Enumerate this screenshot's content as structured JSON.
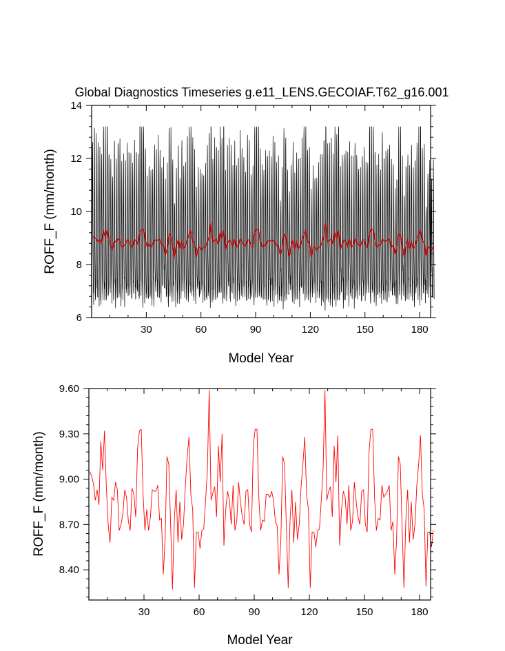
{
  "chart_data": [
    {
      "type": "line",
      "title": "Global Diagnostics Timeseries g.e11_LENS.GECOIAF.T62_g16.001",
      "xlabel": "Model Year",
      "ylabel": "ROFF_F (mm/month)",
      "xlim": [
        0,
        186
      ],
      "ylim": [
        6,
        14
      ],
      "xticks": [
        30,
        60,
        90,
        120,
        150,
        180
      ],
      "yticks": [
        6,
        8,
        10,
        12,
        14
      ],
      "grid": false,
      "series": [
        {
          "role": "monthly",
          "color": "#000000",
          "monthly_cycle": [
            7.0,
            6.8,
            7.1,
            8.2,
            10.0,
            11.8,
            12.3,
            11.0,
            9.3,
            8.3,
            7.6,
            7.1
          ],
          "values": "monthly values oscillating seasonally between approx 6.2 and 13.2 mm/month over model years 0-186"
        },
        {
          "role": "annual_mean",
          "color": "#cc0000",
          "values": [
            9.05,
            9.02,
            8.97,
            8.86,
            8.93,
            8.83,
            9.25,
            9.06,
            9.32,
            8.95,
            8.7,
            8.58,
            8.88,
            8.86,
            8.98,
            8.93,
            8.66,
            8.7,
            8.77,
            8.93,
            8.88,
            8.72,
            8.66,
            8.94,
            8.9,
            8.75,
            9.2,
            9.32,
            9.33,
            8.9,
            8.66,
            8.8,
            8.66,
            8.75,
            8.93,
            8.92,
            8.92,
            8.96,
            8.73,
            8.74,
            8.37,
            8.6,
            9.15,
            9.1,
            8.7,
            8.27,
            8.73,
            8.93,
            8.58,
            8.85,
            8.6,
            8.7,
            8.95,
            9.15,
            9.28,
            8.9,
            8.8,
            8.28,
            8.65,
            8.65,
            8.54,
            8.66,
            8.67,
            8.85,
            9.06,
            9.59,
            8.86,
            8.91,
            8.95,
            8.75,
            9.22,
            8.98,
            9.3,
            8.56,
            8.8,
            8.92,
            8.86,
            8.7,
            8.96,
            8.66,
            8.72,
            8.98,
            8.85,
            8.75,
            8.7,
            8.92,
            8.93,
            8.7,
            8.65,
            9.22,
            9.33,
            9.33,
            8.88,
            8.66,
            8.73,
            8.72,
            8.9,
            8.9,
            8.88,
            8.92,
            8.86,
            8.72,
            8.69,
            8.37,
            8.6,
            9.15,
            9.1,
            8.68,
            8.28,
            8.73,
            8.93,
            8.58,
            8.85,
            8.6,
            8.7,
            8.95,
            9.1,
            9.28,
            8.9,
            8.8,
            8.28,
            8.65,
            8.65,
            8.55,
            8.66,
            8.67,
            8.86,
            9.07,
            9.59,
            8.86,
            8.92,
            8.95,
            8.75,
            9.22,
            8.98,
            9.29,
            8.56,
            8.8,
            8.92,
            8.88,
            8.7,
            8.96,
            8.66,
            8.72,
            8.98,
            8.85,
            8.75,
            8.7,
            8.92,
            8.93,
            8.7,
            8.65,
            9.18,
            9.33,
            9.33,
            8.88,
            8.66,
            8.74,
            8.73,
            8.96,
            8.88,
            8.9,
            8.92,
            8.96,
            8.66,
            8.72,
            8.37,
            8.6,
            9.15,
            9.1,
            8.68,
            8.28,
            8.72,
            8.93,
            8.58,
            8.85,
            8.6,
            8.7,
            8.96,
            9.1,
            9.29,
            8.9,
            8.8,
            8.29,
            8.65,
            8.65,
            8.55,
            8.66
          ]
        }
      ]
    },
    {
      "type": "line",
      "title": "",
      "xlabel": "Model Year",
      "ylabel": "ROFF_F (mm/month)",
      "xlim": [
        0,
        186
      ],
      "ylim": [
        8.2,
        9.6
      ],
      "xticks": [
        30,
        60,
        90,
        120,
        150,
        180
      ],
      "yticks": [
        "8.40",
        "8.70",
        "9.00",
        "9.30",
        "9.60"
      ],
      "grid": false,
      "series": [
        {
          "role": "annual_mean",
          "color": "#ff0000",
          "source": "same annual-mean values as chart 1"
        }
      ]
    }
  ]
}
